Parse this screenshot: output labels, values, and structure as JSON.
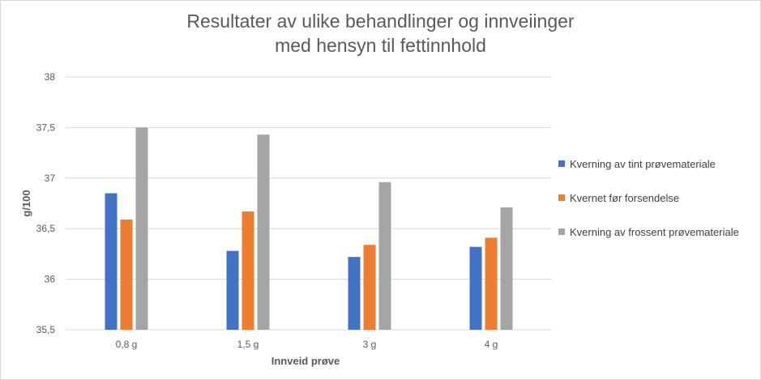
{
  "chart_data": {
    "type": "bar",
    "title_lines": [
      "Resultater av ulike behandlinger og innveiinger",
      "med hensyn til fettinnhold"
    ],
    "xlabel": "Innveid prøve",
    "ylabel": "g/100",
    "categories": [
      "0,8 g",
      "1,5 g",
      "3 g",
      "4 g"
    ],
    "ylim": [
      35.5,
      38
    ],
    "yticks": [
      35.5,
      36,
      36.5,
      37,
      37.5,
      38
    ],
    "ytick_labels": [
      "35,5",
      "36",
      "36,5",
      "37",
      "37,5",
      "38"
    ],
    "grid": true,
    "legend_position": "right",
    "series": [
      {
        "name": "Kverning av tint prøvemateriale",
        "color": "#4472C4",
        "values": [
          36.85,
          36.28,
          36.22,
          36.32
        ]
      },
      {
        "name": "Kvernet før forsendelse",
        "color": "#ED7D31",
        "values": [
          36.59,
          36.67,
          36.34,
          36.41
        ]
      },
      {
        "name": "Kverning av frossent prøvemateriale",
        "color": "#A5A5A5",
        "values": [
          37.5,
          37.43,
          36.96,
          36.71
        ]
      }
    ]
  }
}
